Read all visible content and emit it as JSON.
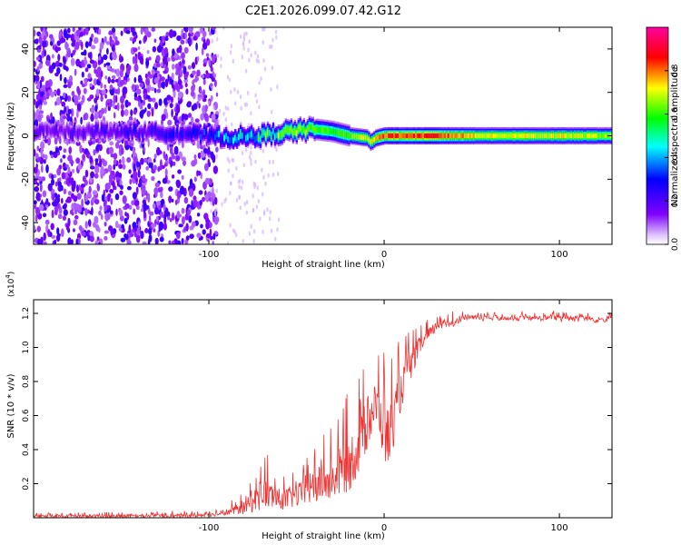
{
  "figure": {
    "title": "C2E1.2026.099.07.42.G12"
  },
  "chart_data": [
    {
      "type": "heatmap",
      "xlabel": "Height of straight line (km)",
      "ylabel": "Frequency (Hz)",
      "xlim": [
        -200,
        130
      ],
      "ylim": [
        -50,
        50
      ],
      "xticks": [
        -100,
        0,
        100
      ],
      "yticks": [
        -40,
        -20,
        0,
        20,
        40
      ],
      "colorbar": {
        "label": "Normalized spectral amplitude",
        "range": [
          0,
          1
        ],
        "ticks": [
          "0.0",
          "0.2",
          "0.4",
          "0.6",
          "0.8"
        ],
        "tick_values": [
          0.0,
          0.2,
          0.4,
          0.6,
          0.8
        ],
        "colors": [
          "#ffffff",
          "#8000ff",
          "#0000ff",
          "#00ffff",
          "#00ff00",
          "#ffff00",
          "#ff0000",
          "#ff00a0"
        ]
      },
      "noise_region_end_km": -100,
      "band_center_hz": [
        {
          "x": -200,
          "y": 2
        },
        {
          "x": -150,
          "y": 2
        },
        {
          "x": -110,
          "y": 1
        },
        {
          "x": -90,
          "y": -1
        },
        {
          "x": -70,
          "y": 0
        },
        {
          "x": -55,
          "y": 2
        },
        {
          "x": -40,
          "y": 3
        },
        {
          "x": -30,
          "y": 2
        },
        {
          "x": -20,
          "y": 0
        },
        {
          "x": -10,
          "y": -1
        },
        {
          "x": -8,
          "y": -3
        },
        {
          "x": -5,
          "y": -1
        },
        {
          "x": 0,
          "y": 0
        },
        {
          "x": 20,
          "y": 0
        },
        {
          "x": 60,
          "y": 0
        },
        {
          "x": 100,
          "y": 0
        },
        {
          "x": 130,
          "y": 0
        }
      ],
      "band_peak_amplitude": [
        {
          "x": -200,
          "y": 0.2
        },
        {
          "x": -110,
          "y": 0.3
        },
        {
          "x": -90,
          "y": 0.45
        },
        {
          "x": -70,
          "y": 0.6
        },
        {
          "x": -50,
          "y": 0.75
        },
        {
          "x": -30,
          "y": 0.65
        },
        {
          "x": -15,
          "y": 0.75
        },
        {
          "x": 0,
          "y": 0.95
        },
        {
          "x": 30,
          "y": 0.95
        },
        {
          "x": 60,
          "y": 0.8
        },
        {
          "x": 100,
          "y": 0.8
        },
        {
          "x": 130,
          "y": 0.75
        }
      ]
    },
    {
      "type": "line",
      "xlabel": "Height of straight line (km)",
      "ylabel": "SNR (10 * v/v)",
      "y_multiplier_label": "(x10",
      "y_multiplier_exponent": "4",
      "y_multiplier_close": ")",
      "xlim": [
        -200,
        130
      ],
      "ylim": [
        0,
        1.28
      ],
      "xticks": [
        -100,
        0,
        100
      ],
      "yticks": [
        "0.2",
        "0.4",
        "0.6",
        "0.8",
        "1.0",
        "1.2"
      ],
      "ytick_values": [
        0.2,
        0.4,
        0.6,
        0.8,
        1.0,
        1.2
      ],
      "color": "#ee3333",
      "series_envelope": [
        {
          "x": -200,
          "lo": 0.0,
          "hi": 0.03
        },
        {
          "x": -110,
          "lo": 0.0,
          "hi": 0.04
        },
        {
          "x": -95,
          "lo": 0.01,
          "hi": 0.05
        },
        {
          "x": -80,
          "lo": 0.02,
          "hi": 0.15
        },
        {
          "x": -68,
          "lo": 0.05,
          "hi": 0.4
        },
        {
          "x": -60,
          "lo": 0.04,
          "hi": 0.28
        },
        {
          "x": -50,
          "lo": 0.06,
          "hi": 0.3
        },
        {
          "x": -40,
          "lo": 0.08,
          "hi": 0.45
        },
        {
          "x": -30,
          "lo": 0.1,
          "hi": 0.55
        },
        {
          "x": -20,
          "lo": 0.15,
          "hi": 0.75
        },
        {
          "x": -12,
          "lo": 0.3,
          "hi": 0.88
        },
        {
          "x": -5,
          "lo": 0.55,
          "hi": 1.0
        },
        {
          "x": 2,
          "lo": 0.25,
          "hi": 0.98
        },
        {
          "x": 10,
          "lo": 0.65,
          "hi": 1.05
        },
        {
          "x": 20,
          "lo": 0.95,
          "hi": 1.15
        },
        {
          "x": 30,
          "lo": 1.1,
          "hi": 1.2
        },
        {
          "x": 50,
          "lo": 1.15,
          "hi": 1.24
        },
        {
          "x": 80,
          "lo": 1.15,
          "hi": 1.22
        },
        {
          "x": 105,
          "lo": 1.14,
          "hi": 1.26
        },
        {
          "x": 130,
          "lo": 1.14,
          "hi": 1.22
        }
      ]
    }
  ]
}
